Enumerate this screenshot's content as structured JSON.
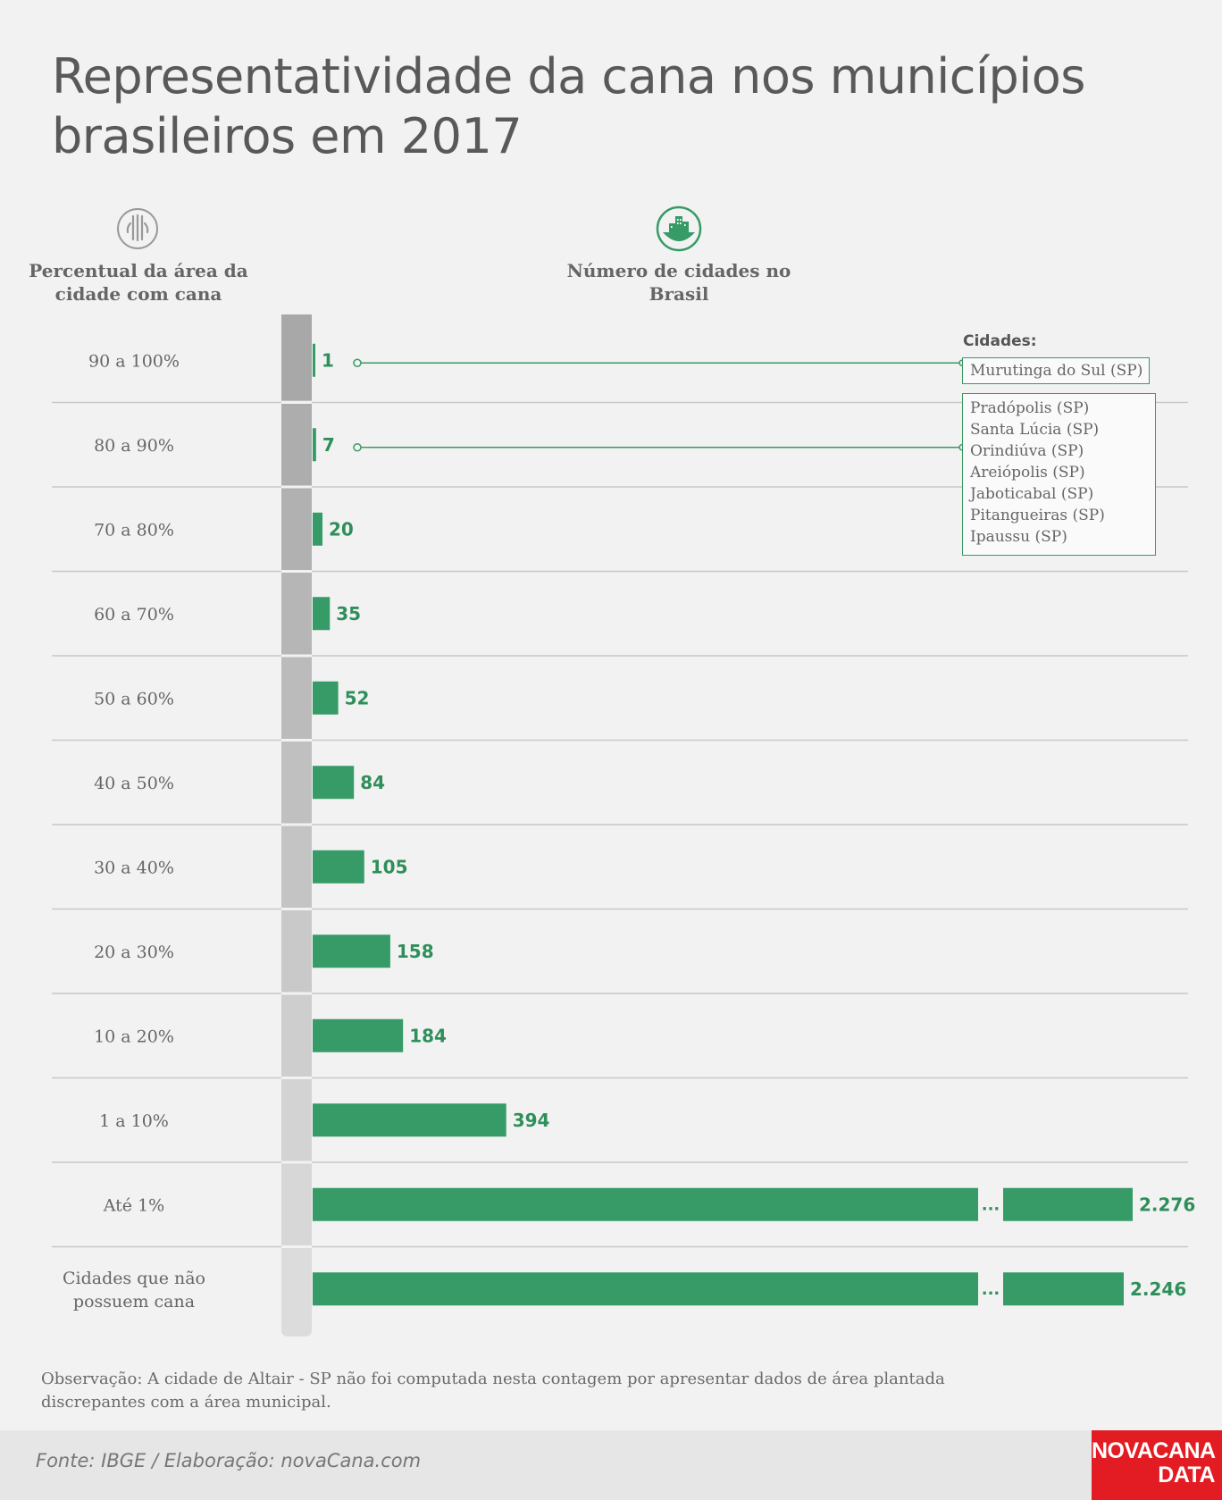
{
  "title": "Representatividade da cana nos municípios brasileiros em 2017",
  "left_header": "Percentual da área da cidade com cana",
  "right_header": "Número de cidades no Brasil",
  "icons": {
    "left": "sugarcane-icon",
    "right": "city-buildings-icon"
  },
  "colors": {
    "bar": "#369b66",
    "label": "#2f8f5a",
    "gauge_dark": "#a9a9a9",
    "gauge_light": "#dcdcdc"
  },
  "chart_data": {
    "type": "bar",
    "orientation": "horizontal",
    "categories": [
      "90 a 100%",
      "80 a 90%",
      "70 a 80%",
      "60 a 70%",
      "50 a 60%",
      "40 a 50%",
      "30 a 40%",
      "20 a 30%",
      "10 a 20%",
      "1 a 10%",
      "Até 1%",
      "Cidades que não possuem cana"
    ],
    "values": [
      1,
      7,
      20,
      35,
      52,
      84,
      105,
      158,
      184,
      394,
      2276,
      2246
    ],
    "value_labels": [
      "1",
      "7",
      "20",
      "35",
      "52",
      "84",
      "105",
      "158",
      "184",
      "394",
      "2.276",
      "2.246"
    ],
    "break_indices": [
      10,
      11
    ],
    "break_symbol": "..."
  },
  "cities": {
    "label": "Cidades:",
    "group_90_100": [
      "Murutinga do Sul (SP)"
    ],
    "group_80_90": [
      "Pradópolis (SP)",
      "Santa Lúcia (SP)",
      "Orindiúva (SP)",
      "Areiópolis (SP)",
      "Jaboticabal (SP)",
      "Pitangueiras (SP)",
      "Ipaussu (SP)"
    ]
  },
  "note": "Observação: A cidade de Altair - SP não foi computada nesta contagem por apresentar dados de área plantada discrepantes com a área municipal.",
  "source": "Fonte: IBGE / Elaboração: novaCana.com",
  "logo": {
    "line1": "NOVACANA",
    "line2": "DATA"
  }
}
